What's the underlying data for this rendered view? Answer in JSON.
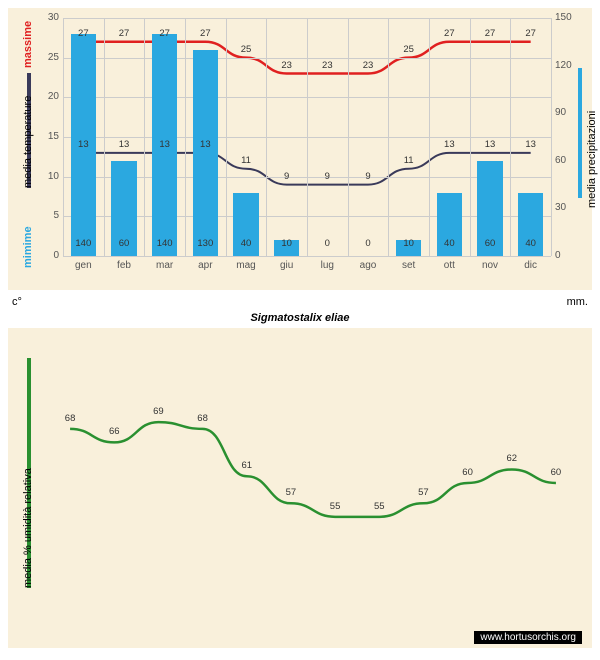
{
  "subtitle": "Sigmatostalix eliae",
  "watermark": "www.hortusorchis.org",
  "labels": {
    "massime": "massime",
    "mimime": "mimime",
    "media_temp": "media  temperature",
    "media_precip": "media  precipitazioni",
    "media_humid": "media % umidità relativa",
    "c_deg": "c°",
    "mm": "mm."
  },
  "colors": {
    "bg": "#f9f0db",
    "bar": "#2ba8e0",
    "max_line": "#e02020",
    "min_line": "#3a3a5a",
    "humid_line": "#2a9030",
    "grid": "#cccccc",
    "massime_color": "#e02020",
    "mimime_color": "#2ba8e0",
    "precip_strip": "#2ba8e0",
    "humid_strip": "#2a9030",
    "text": "#555555"
  },
  "top_chart": {
    "months": [
      "gen",
      "feb",
      "mar",
      "apr",
      "mag",
      "giu",
      "lug",
      "ago",
      "set",
      "ott",
      "nov",
      "dic"
    ],
    "max_temp": [
      27,
      27,
      27,
      27,
      25,
      23,
      23,
      23,
      25,
      27,
      27,
      27
    ],
    "min_temp": [
      13,
      13,
      13,
      13,
      11,
      9,
      9,
      9,
      11,
      13,
      13,
      13
    ],
    "precip": [
      140,
      60,
      140,
      130,
      40,
      10,
      0,
      0,
      10,
      40,
      60,
      40
    ],
    "y_left": {
      "min": 0,
      "max": 30,
      "step": 5
    },
    "y_right": {
      "min": 0,
      "max": 150,
      "step": 30
    }
  },
  "humid_chart": {
    "values": [
      68,
      66,
      69,
      68,
      61,
      57,
      55,
      55,
      57,
      60,
      62,
      60
    ]
  }
}
